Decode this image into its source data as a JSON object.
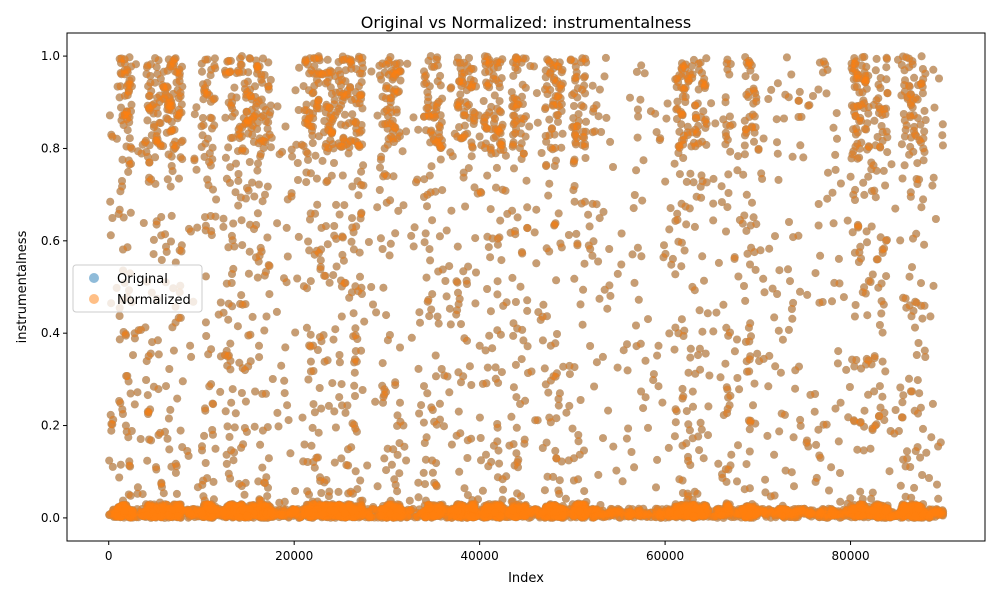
{
  "chart_data": {
    "type": "scatter",
    "title": "Original vs Normalized: instrumentalness",
    "xlabel": "Index",
    "ylabel": "instrumentalness",
    "xlim": [
      -4500,
      94500
    ],
    "ylim": [
      -0.05,
      1.05
    ],
    "xticks": [
      0,
      20000,
      40000,
      60000,
      80000
    ],
    "xtick_labels": [
      "0",
      "20000",
      "40000",
      "60000",
      "80000"
    ],
    "yticks": [
      0.0,
      0.2,
      0.4,
      0.6,
      0.8,
      1.0
    ],
    "ytick_labels": [
      "0.0",
      "0.2",
      "0.4",
      "0.6",
      "0.8",
      "1.0"
    ],
    "grid": false,
    "legend_position": "center-left",
    "point_count_approx": 90000,
    "series": [
      {
        "name": "Original",
        "color": "#1f77b4",
        "alpha": 0.5
      },
      {
        "name": "Normalized",
        "color": "#ff7f0e",
        "alpha": 0.5
      }
    ],
    "x_range": [
      0,
      90000
    ],
    "y_range": [
      0.0,
      1.0
    ],
    "dense_index_bands": [
      [
        1000,
        2500
      ],
      [
        4000,
        8000
      ],
      [
        10000,
        11500
      ],
      [
        12500,
        17500
      ],
      [
        21000,
        27500
      ],
      [
        29500,
        31500
      ],
      [
        34000,
        36000
      ],
      [
        37500,
        39500
      ],
      [
        40500,
        42500
      ],
      [
        43500,
        45000
      ],
      [
        47000,
        49000
      ],
      [
        50000,
        51500
      ],
      [
        61000,
        64500
      ],
      [
        66500,
        67000
      ],
      [
        68500,
        70000
      ],
      [
        80000,
        82000
      ],
      [
        82500,
        84000
      ],
      [
        85500,
        88000
      ]
    ]
  }
}
